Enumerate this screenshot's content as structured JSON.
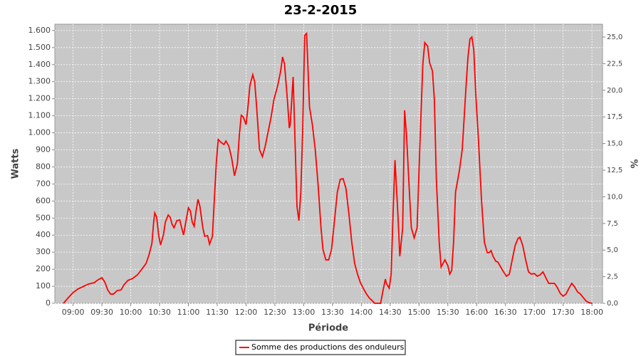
{
  "chart_data": {
    "type": "line",
    "title": "23-2-2015",
    "x_label": "Période",
    "y_label": "Watts",
    "y2_label": "%",
    "xlim": [
      521,
      1091
    ],
    "xticks": [
      {
        "value": 540,
        "label": "09:00"
      },
      {
        "value": 570,
        "label": "09:30"
      },
      {
        "value": 600,
        "label": "10:00"
      },
      {
        "value": 630,
        "label": "10:30"
      },
      {
        "value": 660,
        "label": "11:00"
      },
      {
        "value": 690,
        "label": "11:30"
      },
      {
        "value": 720,
        "label": "12:00"
      },
      {
        "value": 750,
        "label": "12:30"
      },
      {
        "value": 780,
        "label": "13:00"
      },
      {
        "value": 810,
        "label": "13:30"
      },
      {
        "value": 840,
        "label": "14:00"
      },
      {
        "value": 870,
        "label": "14:30"
      },
      {
        "value": 900,
        "label": "15:00"
      },
      {
        "value": 930,
        "label": "15:30"
      },
      {
        "value": 960,
        "label": "16:00"
      },
      {
        "value": 990,
        "label": "16:30"
      },
      {
        "value": 1020,
        "label": "17:00"
      },
      {
        "value": 1050,
        "label": "17:30"
      },
      {
        "value": 1080,
        "label": "18:00"
      }
    ],
    "ylim": [
      0,
      1637
    ],
    "yticks": [
      0,
      100,
      200,
      300,
      400,
      500,
      600,
      700,
      800,
      900,
      {
        "value": 1000,
        "label": "1.000"
      },
      {
        "value": 1100,
        "label": "1.100"
      },
      {
        "value": 1200,
        "label": "1.200"
      },
      {
        "value": 1300,
        "label": "1.300"
      },
      {
        "value": 1400,
        "label": "1.400"
      },
      {
        "value": 1500,
        "label": "1.500"
      },
      {
        "value": 1600,
        "label": "1.600"
      }
    ],
    "y2lim": [
      0,
      26.2
    ],
    "y2ticks": [
      {
        "value": 0,
        "label": "0,0"
      },
      {
        "value": 2.5,
        "label": "2,5"
      },
      {
        "value": 5,
        "label": "5,0"
      },
      {
        "value": 7.5,
        "label": "7,5"
      },
      {
        "value": 10,
        "label": "10,0"
      },
      {
        "value": 12.5,
        "label": "12,5"
      },
      {
        "value": 15,
        "label": "15,0"
      },
      {
        "value": 17.5,
        "label": "17,5"
      },
      {
        "value": 20,
        "label": "20,0"
      },
      {
        "value": 22.5,
        "label": "22,5"
      },
      {
        "value": 25,
        "label": "25,0"
      }
    ],
    "grid": true,
    "legend": "bottom",
    "x": [
      530,
      535,
      540,
      545,
      551,
      556,
      562,
      566,
      570,
      573,
      576,
      579,
      582,
      586,
      590,
      593,
      597,
      602,
      607,
      611,
      616,
      619,
      622,
      624,
      625,
      627,
      629,
      631,
      634,
      636,
      639,
      641,
      643,
      645,
      648,
      651,
      653,
      655,
      657,
      660,
      662,
      664,
      666,
      668,
      670,
      672,
      675,
      677,
      680,
      682,
      685,
      687,
      689,
      691,
      694,
      697,
      699,
      702,
      705,
      708,
      711,
      713,
      715,
      717,
      720,
      722,
      724,
      727,
      729,
      731,
      734,
      737,
      740,
      743,
      746,
      749,
      753,
      756,
      758,
      760,
      763,
      765,
      766,
      768,
      769,
      771,
      773,
      775,
      777,
      779,
      781,
      783,
      784,
      786,
      789,
      792,
      795,
      798,
      800,
      803,
      806,
      809,
      812,
      815,
      818,
      821,
      824,
      827,
      830,
      833,
      836,
      839,
      842,
      845,
      848,
      851,
      854,
      860,
      863,
      865,
      866,
      869,
      871,
      873,
      875,
      878,
      880,
      883,
      885,
      887,
      890,
      892,
      895,
      898,
      901,
      904,
      906,
      909,
      911,
      914,
      916,
      918,
      921,
      923,
      925,
      927,
      930,
      932,
      934,
      936,
      938,
      942,
      945,
      947,
      949,
      951,
      953,
      955,
      957,
      959,
      962,
      965,
      968,
      971,
      973,
      975,
      977,
      980,
      982,
      985,
      988,
      991,
      994,
      997,
      1000,
      1003,
      1005,
      1008,
      1011,
      1014,
      1017,
      1020,
      1023,
      1026,
      1029,
      1032,
      1035,
      1038,
      1041,
      1044,
      1047,
      1050,
      1053,
      1056,
      1059,
      1062,
      1065,
      1068,
      1071,
      1074,
      1077,
      1080
    ],
    "series": [
      {
        "name": "Somme des productions des onduleurs",
        "color": "#ff0000",
        "values": [
          0,
          33,
          63,
          84,
          100,
          113,
          121,
          138,
          150,
          125,
          79,
          54,
          54,
          75,
          79,
          109,
          134,
          146,
          167,
          196,
          234,
          284,
          351,
          485,
          530,
          505,
          401,
          342,
          401,
          476,
          518,
          505,
          464,
          443,
          485,
          489,
          443,
          401,
          468,
          560,
          543,
          476,
          451,
          543,
          610,
          568,
          443,
          393,
          397,
          347,
          393,
          610,
          819,
          961,
          944,
          931,
          952,
          923,
          852,
          748,
          819,
          986,
          1103,
          1094,
          1048,
          1153,
          1278,
          1341,
          1299,
          1153,
          902,
          860,
          923,
          1007,
          1090,
          1195,
          1278,
          1362,
          1445,
          1404,
          1195,
          1028,
          1048,
          1236,
          1328,
          944,
          568,
          485,
          652,
          1028,
          1571,
          1583,
          1445,
          1153,
          1048,
          902,
          693,
          443,
          317,
          255,
          255,
          317,
          485,
          652,
          727,
          731,
          673,
          526,
          359,
          234,
          171,
          121,
          88,
          58,
          33,
          17,
          0,
          0,
          88,
          142,
          117,
          88,
          171,
          526,
          840,
          526,
          276,
          443,
          1132,
          986,
          652,
          443,
          384,
          443,
          944,
          1404,
          1529,
          1508,
          1412,
          1362,
          1195,
          735,
          359,
          213,
          234,
          255,
          221,
          171,
          192,
          359,
          652,
          777,
          902,
          1090,
          1278,
          1445,
          1550,
          1562,
          1487,
          1236,
          944,
          610,
          359,
          297,
          297,
          309,
          276,
          246,
          242,
          213,
          184,
          159,
          171,
          255,
          338,
          380,
          388,
          338,
          255,
          184,
          171,
          175,
          159,
          167,
          184,
          150,
          117,
          117,
          117,
          92,
          58,
          42,
          54,
          88,
          117,
          96,
          67,
          54,
          33,
          13,
          4,
          0
        ]
      }
    ]
  }
}
